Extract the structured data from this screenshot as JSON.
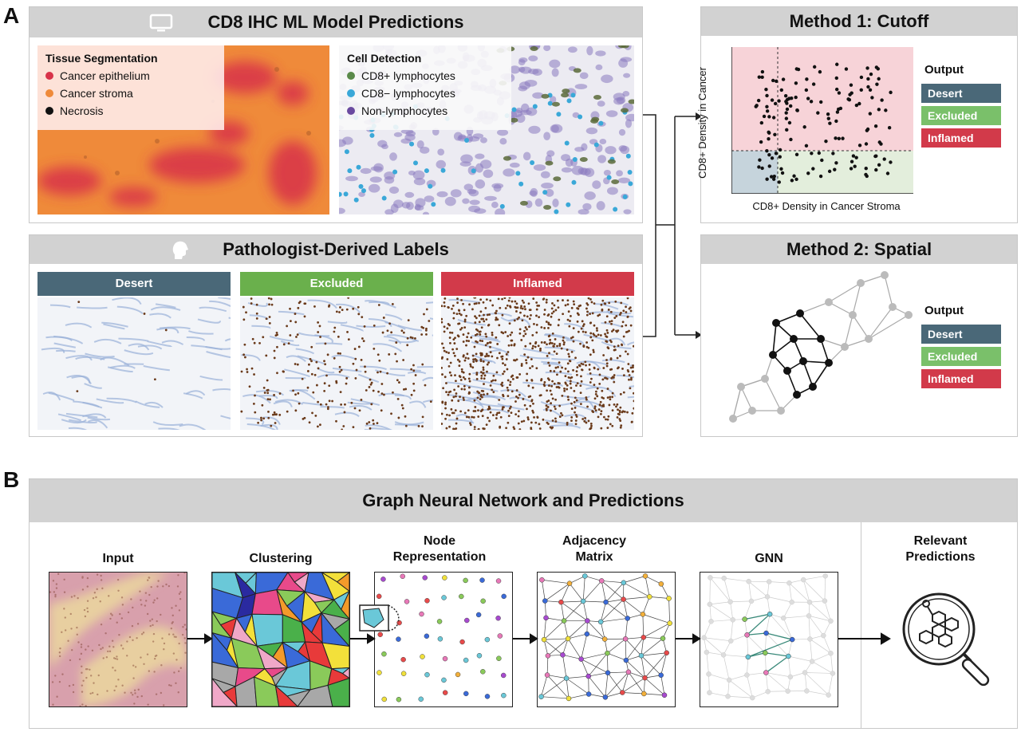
{
  "panel_a": {
    "letter": "A",
    "model": {
      "title": "CD8 IHC ML Model Predictions",
      "icon": "monitor-icon",
      "tissue": {
        "title": "Tissue Segmentation",
        "items": [
          {
            "label": "Cancer epithelium",
            "color": "#d8334a"
          },
          {
            "label": "Cancer stroma",
            "color": "#ef8a3a"
          },
          {
            "label": "Necrosis",
            "color": "#111111"
          }
        ]
      },
      "cells": {
        "title": "Cell Detection",
        "items": [
          {
            "label": "CD8+ lymphocytes",
            "color": "#5a8a4a"
          },
          {
            "label": "CD8− lymphocytes",
            "color": "#3aa8d8"
          },
          {
            "label": "Non-lymphocytes",
            "color": "#6a4aa0"
          }
        ]
      }
    },
    "pathologist": {
      "title": "Pathologist-Derived Labels",
      "icon": "head-icon",
      "categories": [
        {
          "label": "Desert",
          "color": "#4a6878"
        },
        {
          "label": "Excluded",
          "color": "#6ab04c"
        },
        {
          "label": "Inflamed",
          "color": "#d23a4a"
        }
      ]
    },
    "method1": {
      "title": "Method 1: Cutoff",
      "ylabel": "CD8+ Density in Cancer",
      "xlabel": "CD8+ Density in Cancer Stroma",
      "output_title": "Output",
      "outputs": [
        {
          "label": "Desert",
          "color": "#4a6878"
        },
        {
          "label": "Excluded",
          "color": "#7ac06a"
        },
        {
          "label": "Inflamed",
          "color": "#d23a4a"
        }
      ]
    },
    "method2": {
      "title": "Method 2: Spatial",
      "output_title": "Output",
      "outputs": [
        {
          "label": "Desert",
          "color": "#4a6878"
        },
        {
          "label": "Excluded",
          "color": "#7ac06a"
        },
        {
          "label": "Inflamed",
          "color": "#d23a4a"
        }
      ]
    }
  },
  "panel_b": {
    "letter": "B",
    "title": "Graph Neural Network and Predictions",
    "steps": [
      {
        "label": "Input"
      },
      {
        "label": "Clustering"
      },
      {
        "label": "Node Representation"
      },
      {
        "label": "Adjacency Matrix"
      },
      {
        "label": "GNN"
      }
    ],
    "predictions_label": "Relevant Predictions",
    "predictions_icon": "magnifier-icon"
  }
}
